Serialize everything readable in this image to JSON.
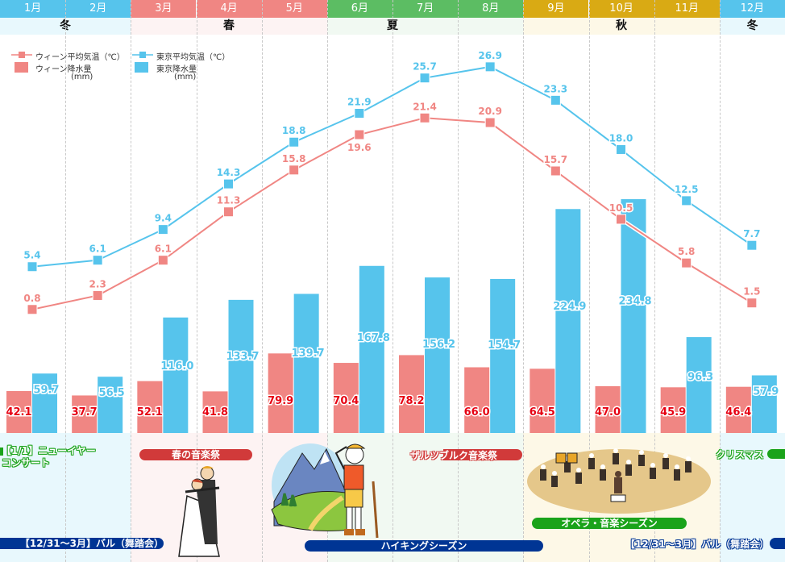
{
  "chart_data": {
    "type": "bar+line",
    "categories": [
      "1月",
      "2月",
      "3月",
      "4月",
      "5月",
      "6月",
      "7月",
      "8月",
      "9月",
      "10月",
      "11月",
      "12月"
    ],
    "series": [
      {
        "name": "ウィーン平均気温（℃）",
        "kind": "line",
        "color": "#f08683",
        "values": [
          0.8,
          2.3,
          6.1,
          11.3,
          15.8,
          19.6,
          21.4,
          20.9,
          15.7,
          10.5,
          5.8,
          1.5
        ]
      },
      {
        "name": "東京平均気温（℃）",
        "kind": "line",
        "color": "#56c4ec",
        "values": [
          5.4,
          6.1,
          9.4,
          14.3,
          18.8,
          21.9,
          25.7,
          26.9,
          23.3,
          18.0,
          12.5,
          7.7
        ]
      },
      {
        "name": "ウィーン降水量 (mm)",
        "kind": "bar",
        "color": "#f08683",
        "values": [
          42.1,
          37.7,
          52.1,
          41.8,
          79.9,
          70.4,
          78.2,
          66.0,
          64.5,
          47.0,
          45.9,
          46.4
        ]
      },
      {
        "name": "東京降水量 (mm)",
        "kind": "bar",
        "color": "#56c4ec",
        "values": [
          59.7,
          56.5,
          116.0,
          133.7,
          139.7,
          167.8,
          156.2,
          154.7,
          224.9,
          234.8,
          96.3,
          57.9
        ]
      }
    ],
    "legend": {
      "vienna_temp": "ウィーン平均気温（℃）",
      "tokyo_temp": "東京平均気温（℃）",
      "vienna_rain": "ウィーン降水量",
      "tokyo_rain": "東京降水量",
      "unit_mm": "(mm)",
      "placement": "top-left"
    },
    "grid": false
  },
  "months": [
    {
      "label": "1月",
      "color": "#56c4ec"
    },
    {
      "label": "2月",
      "color": "#56c4ec"
    },
    {
      "label": "3月",
      "color": "#f08683"
    },
    {
      "label": "4月",
      "color": "#f08683"
    },
    {
      "label": "5月",
      "color": "#f08683"
    },
    {
      "label": "6月",
      "color": "#5cbd63"
    },
    {
      "label": "7月",
      "color": "#5cbd63"
    },
    {
      "label": "8月",
      "color": "#5cbd63"
    },
    {
      "label": "9月",
      "color": "#d9aa14"
    },
    {
      "label": "10月",
      "color": "#d9aa14"
    },
    {
      "label": "11月",
      "color": "#d9aa14"
    },
    {
      "label": "12月",
      "color": "#56c4ec"
    }
  ],
  "seasons": {
    "winter1": {
      "label": "冬",
      "color": "#e8f8fd"
    },
    "spring": {
      "label": "春",
      "color": "#fdf3f3"
    },
    "summer": {
      "label": "夏",
      "color": "#f1f9f2"
    },
    "autumn": {
      "label": "秋",
      "color": "#fdf8e7"
    },
    "winter2": {
      "label": "冬",
      "color": "#e8f8fd"
    }
  },
  "events": {
    "new_year_line1": "【1/1】ニューイヤー",
    "new_year_line2": "コンサート",
    "spring_fest": "春の音楽祭",
    "salzburg_fest": "ザルツブルク音楽祭",
    "christmas": "クリスマス",
    "opera_season": "オペラ・音楽シーズン",
    "ball_left": "【12/31～3月】バル（舞踏会）",
    "hiking": "ハイキングシーズン",
    "ball_right": "【12/31～3月】バル（舞踏会）"
  },
  "colors": {
    "vienna": "#f08683",
    "tokyo": "#56c4ec",
    "vienna_bar_label": "#e60012",
    "green_event": "#1aa31a",
    "red_pill": "#d13a3a",
    "blue_pill": "#003594"
  }
}
